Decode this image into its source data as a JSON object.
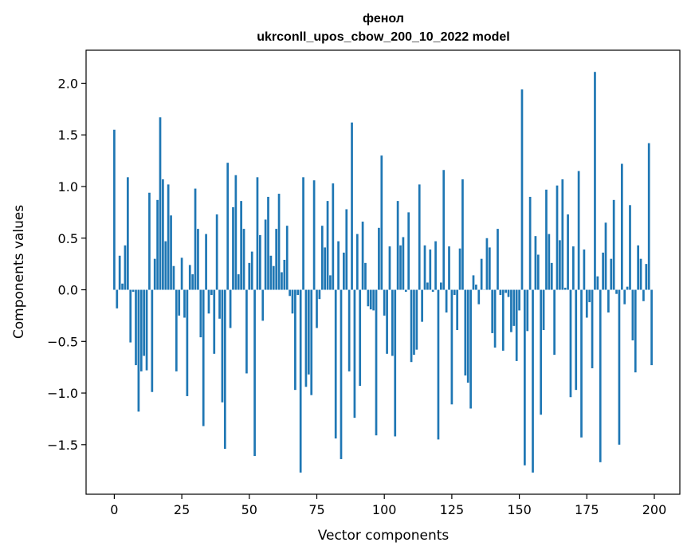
{
  "chart_data": {
    "type": "bar",
    "title_line1": "фенол",
    "title_line2": "ukrconll_upos_cbow_200_10_2022 model",
    "xlabel": "Vector components",
    "ylabel": "Components values",
    "xlim": [
      -10.45,
      209.45
    ],
    "ylim": [
      -1.98,
      2.32
    ],
    "xticks": [
      0,
      25,
      50,
      75,
      100,
      125,
      150,
      175,
      200
    ],
    "xtick_labels": [
      "0",
      "25",
      "50",
      "75",
      "100",
      "125",
      "150",
      "175",
      "200"
    ],
    "yticks": [
      -1.5,
      -1.0,
      -0.5,
      0.0,
      0.5,
      1.0,
      1.5,
      2.0
    ],
    "ytick_labels": [
      "−1.5",
      "−1.0",
      "−0.5",
      "0.0",
      "0.5",
      "1.0",
      "1.5",
      "2.0"
    ],
    "grid": false,
    "bar_color": "#1f77b4",
    "values": [
      1.55,
      -0.18,
      0.33,
      0.06,
      0.43,
      1.09,
      -0.51,
      -0.02,
      -0.73,
      -1.18,
      -0.79,
      -0.64,
      -0.78,
      0.94,
      -0.99,
      0.3,
      0.87,
      1.67,
      1.07,
      0.47,
      1.02,
      0.72,
      0.23,
      -0.79,
      -0.25,
      0.31,
      -0.27,
      -1.03,
      0.24,
      0.15,
      0.98,
      0.59,
      -0.46,
      -1.32,
      0.54,
      -0.23,
      -0.05,
      -0.62,
      0.73,
      -0.28,
      -1.09,
      -1.54,
      1.23,
      -0.37,
      0.8,
      1.11,
      0.15,
      0.86,
      0.59,
      -0.81,
      0.26,
      0.37,
      -1.61,
      1.09,
      0.53,
      -0.3,
      0.68,
      0.9,
      0.33,
      0.23,
      0.59,
      0.93,
      0.17,
      0.29,
      0.62,
      -0.06,
      -0.23,
      -0.97,
      -0.05,
      -1.77,
      1.09,
      -0.94,
      -0.82,
      -1.02,
      1.06,
      -0.37,
      -0.09,
      0.62,
      0.41,
      0.86,
      0.14,
      1.03,
      -1.44,
      0.47,
      -1.64,
      0.36,
      0.78,
      -0.79,
      1.62,
      -1.24,
      0.54,
      -0.93,
      0.66,
      0.26,
      -0.16,
      -0.19,
      -0.2,
      -1.41,
      0.6,
      1.3,
      -0.25,
      -0.62,
      0.42,
      -0.64,
      -1.42,
      0.86,
      0.43,
      0.51,
      -0.02,
      0.75,
      -0.7,
      -0.63,
      -0.58,
      1.02,
      -0.31,
      0.43,
      0.07,
      0.39,
      -0.02,
      0.47,
      -1.45,
      0.07,
      1.16,
      -0.22,
      0.42,
      -1.11,
      -0.05,
      -0.39,
      0.4,
      1.07,
      -0.83,
      -0.9,
      -1.15,
      0.14,
      0.05,
      -0.14,
      0.3,
      0.0,
      0.5,
      0.41,
      -0.42,
      -0.56,
      0.59,
      -0.05,
      -0.59,
      -0.03,
      -0.07,
      -0.41,
      -0.35,
      -0.69,
      -0.2,
      1.94,
      -1.7,
      -0.4,
      0.9,
      -1.77,
      0.52,
      0.34,
      -1.21,
      -0.39,
      0.97,
      0.54,
      0.26,
      -0.63,
      1.01,
      0.48,
      1.07,
      0.02,
      0.73,
      -1.04,
      0.42,
      -0.97,
      1.15,
      -1.43,
      0.39,
      -0.27,
      -0.12,
      -0.76,
      2.11,
      0.13,
      -1.67,
      0.36,
      0.65,
      -0.22,
      0.3,
      0.87,
      -0.04,
      -1.5,
      1.22,
      -0.14,
      0.03,
      0.82,
      -0.49,
      -0.8,
      0.43,
      0.3,
      -0.11,
      0.25,
      1.42,
      -0.73
    ]
  }
}
